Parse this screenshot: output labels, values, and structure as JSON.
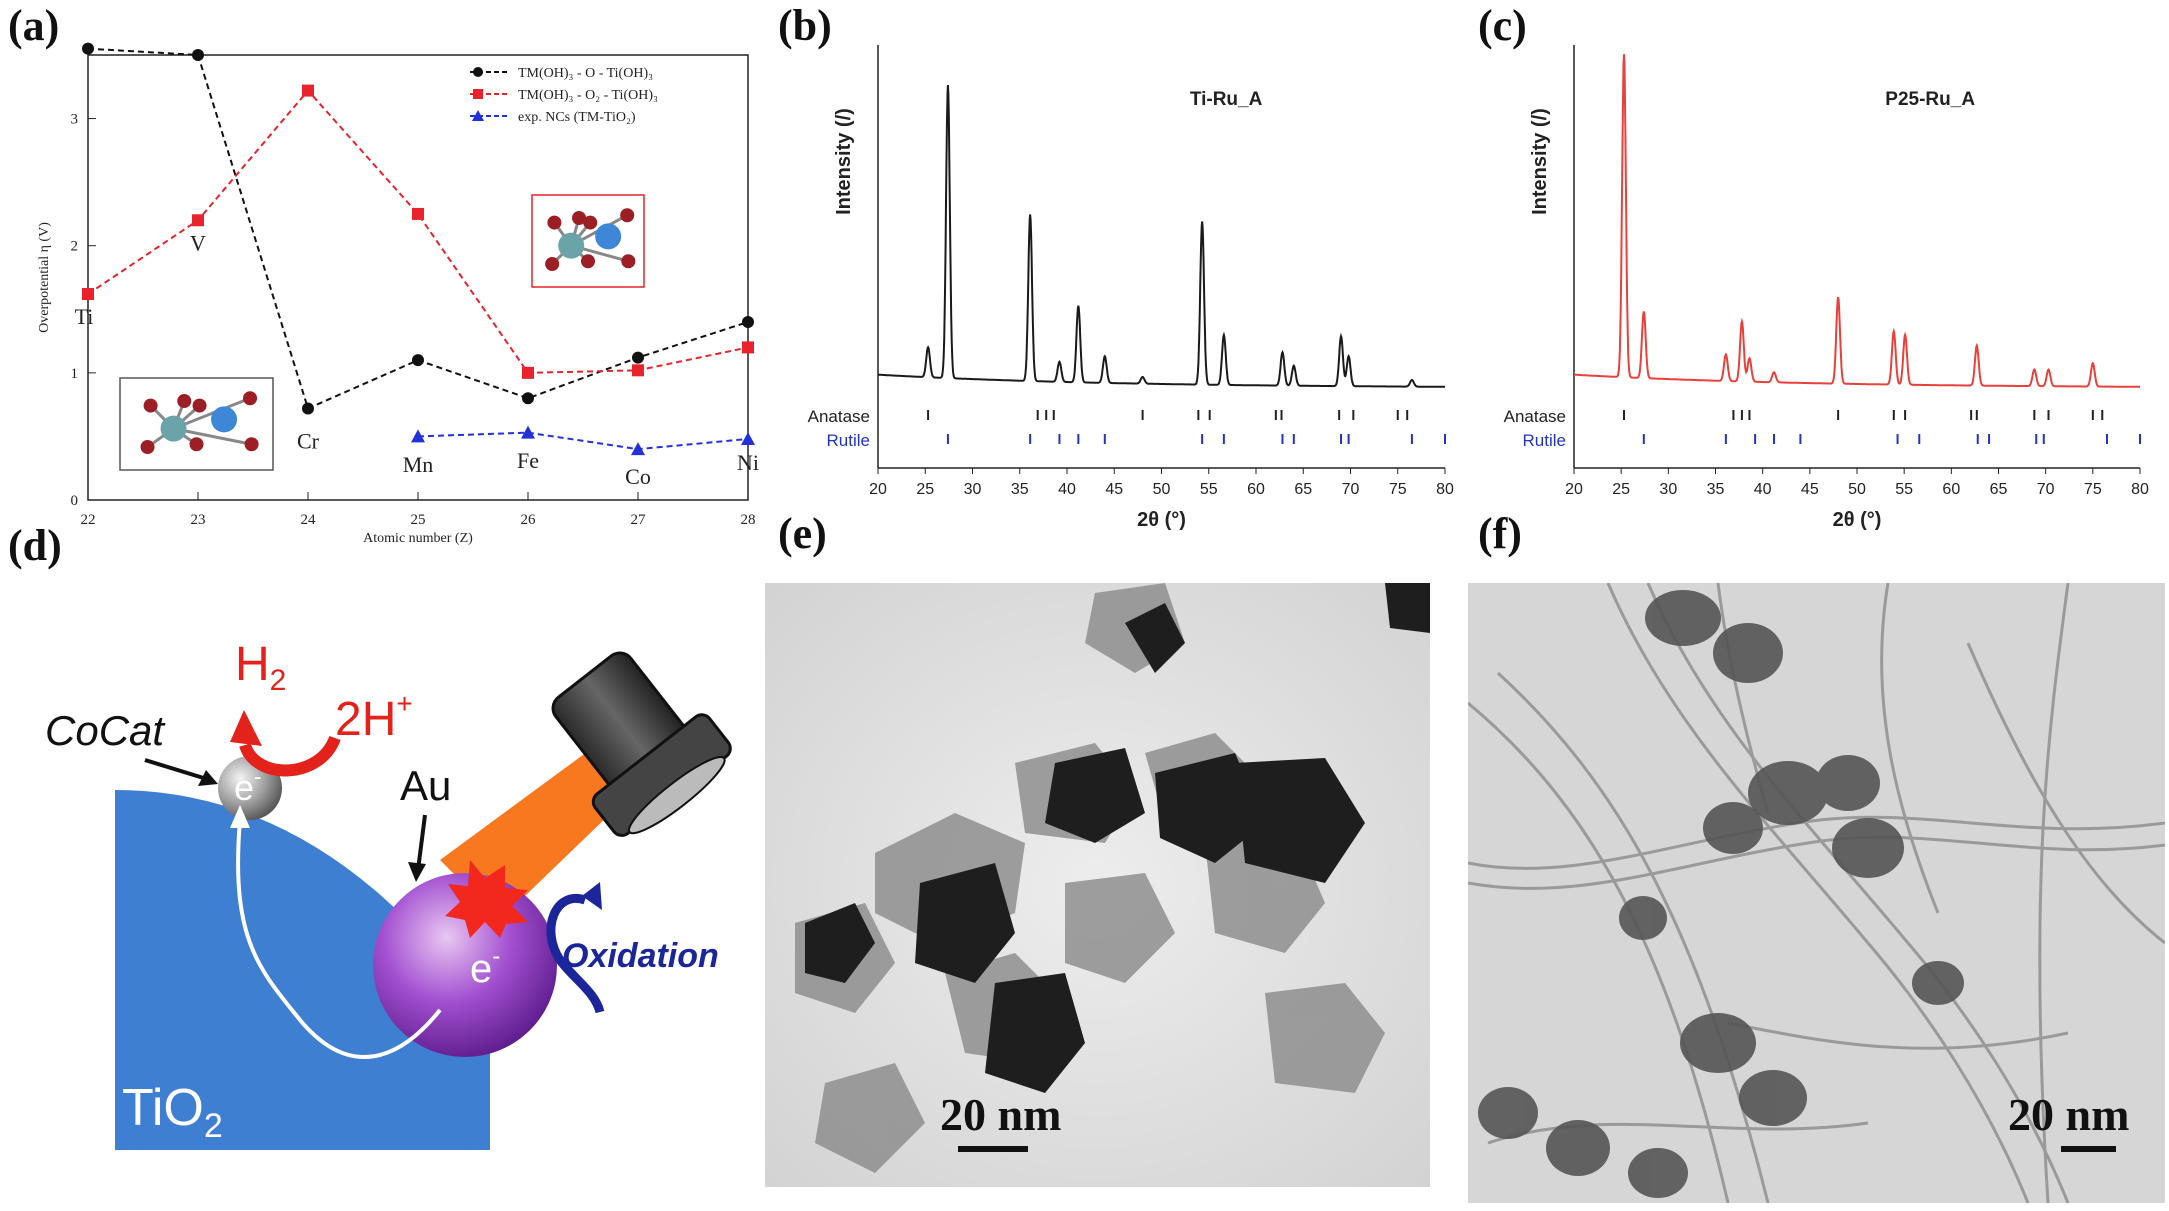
{
  "panels": {
    "a": "(a)",
    "b": "(b)",
    "c": "(c)",
    "d": "(d)",
    "e": "(e)",
    "f": "(f)"
  },
  "chart_data": [
    {
      "type": "line",
      "id": "a",
      "xlabel": "Atomic number (Z)",
      "ylabel": "Overpotential η (V)",
      "xlim": [
        22,
        28
      ],
      "ylim": [
        0,
        3.5
      ],
      "x_ticks": [
        "22",
        "23",
        "24",
        "25",
        "26",
        "27",
        "28"
      ],
      "y_ticks": [
        "0",
        "1",
        "2",
        "3"
      ],
      "element_labels": [
        {
          "label": "Ti",
          "x": 22
        },
        {
          "label": "V",
          "x": 23
        },
        {
          "label": "Cr",
          "x": 24
        },
        {
          "label": "Mn",
          "x": 25
        },
        {
          "label": "Fe",
          "x": 26
        },
        {
          "label": "Co",
          "x": 27
        },
        {
          "label": "Ni",
          "x": 28
        }
      ],
      "series": [
        {
          "name": "TM(OH)₃ - O - Ti(OH)₃",
          "color": "#111111",
          "marker": "circle",
          "x": [
            22,
            23,
            24,
            25,
            26,
            27,
            28
          ],
          "values": [
            3.55,
            3.5,
            0.72,
            1.1,
            0.8,
            1.12,
            1.4
          ]
        },
        {
          "name": "TM(OH)₃ - O₂ - Ti(OH)₃",
          "color": "#e8232b",
          "marker": "square",
          "x": [
            22,
            23,
            24,
            25,
            26,
            27,
            28
          ],
          "values": [
            1.62,
            2.2,
            3.22,
            2.25,
            1.0,
            1.02,
            1.2
          ]
        },
        {
          "name": "exp. NCs (TM-TiO₂)",
          "color": "#2231d8",
          "marker": "triangle",
          "x": [
            25,
            26,
            27,
            28
          ],
          "values": [
            0.5,
            0.53,
            0.4,
            0.48
          ]
        }
      ]
    },
    {
      "type": "line",
      "id": "b",
      "title": "Ti-Ru_A",
      "xlabel": "2θ (°)",
      "ylabel": "Intensity (/)",
      "xlim": [
        20,
        80
      ],
      "x_ticks": [
        "20",
        "25",
        "30",
        "35",
        "40",
        "45",
        "50",
        "55",
        "60",
        "65",
        "70",
        "75",
        "80"
      ],
      "line_color": "#1a1a1a",
      "peaks": [
        {
          "x": 25.3,
          "h": 0.09
        },
        {
          "x": 27.4,
          "h": 0.88
        },
        {
          "x": 36.1,
          "h": 0.5
        },
        {
          "x": 39.2,
          "h": 0.06
        },
        {
          "x": 41.2,
          "h": 0.23
        },
        {
          "x": 44.0,
          "h": 0.08
        },
        {
          "x": 48.0,
          "h": 0.02
        },
        {
          "x": 54.3,
          "h": 0.49
        },
        {
          "x": 56.6,
          "h": 0.15
        },
        {
          "x": 62.8,
          "h": 0.1
        },
        {
          "x": 64.0,
          "h": 0.06
        },
        {
          "x": 69.0,
          "h": 0.15
        },
        {
          "x": 69.8,
          "h": 0.09
        },
        {
          "x": 76.5,
          "h": 0.02
        }
      ],
      "ref_labels": {
        "anatase": "Anatase",
        "rutile": "Rutile"
      },
      "anatase_ticks": [
        25.3,
        36.9,
        37.8,
        38.6,
        48.0,
        53.9,
        55.1,
        62.1,
        62.7,
        68.8,
        70.3,
        75.0,
        76.0
      ],
      "rutile_ticks": [
        27.4,
        36.1,
        39.2,
        41.2,
        44.0,
        54.3,
        56.6,
        62.8,
        64.0,
        69.0,
        69.8,
        76.5,
        80.0
      ]
    },
    {
      "type": "line",
      "id": "c",
      "title": "P25-Ru_A",
      "xlabel": "2θ (°)",
      "ylabel": "Intensity (/)",
      "xlim": [
        20,
        80
      ],
      "x_ticks": [
        "20",
        "25",
        "30",
        "35",
        "40",
        "45",
        "50",
        "55",
        "60",
        "65",
        "70",
        "75",
        "80"
      ],
      "line_color": "#e8403a",
      "peaks": [
        {
          "x": 25.3,
          "h": 0.97
        },
        {
          "x": 27.4,
          "h": 0.2
        },
        {
          "x": 36.1,
          "h": 0.08
        },
        {
          "x": 37.8,
          "h": 0.18
        },
        {
          "x": 38.6,
          "h": 0.07
        },
        {
          "x": 41.2,
          "h": 0.03
        },
        {
          "x": 48.0,
          "h": 0.26
        },
        {
          "x": 53.9,
          "h": 0.16
        },
        {
          "x": 55.1,
          "h": 0.15
        },
        {
          "x": 62.7,
          "h": 0.12
        },
        {
          "x": 68.8,
          "h": 0.05
        },
        {
          "x": 70.3,
          "h": 0.05
        },
        {
          "x": 75.0,
          "h": 0.07
        }
      ],
      "ref_labels": {
        "anatase": "Anatase",
        "rutile": "Rutile"
      },
      "anatase_ticks": [
        25.3,
        36.9,
        37.8,
        38.6,
        48.0,
        53.9,
        55.1,
        62.1,
        62.7,
        68.8,
        70.3,
        75.0,
        76.0
      ],
      "rutile_ticks": [
        27.4,
        36.1,
        39.2,
        41.2,
        44.0,
        54.3,
        56.6,
        62.8,
        64.0,
        69.0,
        69.8,
        76.5,
        80.0
      ]
    }
  ],
  "schematic": {
    "h2": "H",
    "h2_sub": "2",
    "twoh": "2H",
    "twoh_sup": "+",
    "cocat": "CoCat",
    "au": "Au",
    "e_minus": "e",
    "e_sup": "-",
    "oxidation": "Oxidation",
    "tio2": "TiO",
    "tio2_sub": "2"
  },
  "tem": {
    "e_scale": "20 nm",
    "f_scale": "20 nm"
  }
}
